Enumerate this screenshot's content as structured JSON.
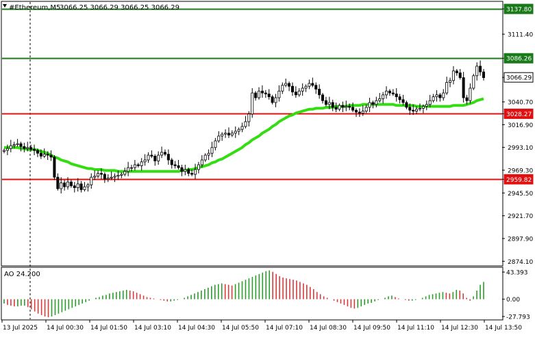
{
  "header": {
    "symbol_label": "#Ethereum,M5",
    "ohlc_label": "3066.25 3066.29 3066.25 3066.29"
  },
  "oscillator": {
    "label": "AO 24.200",
    "axis_labels": [
      "43.393",
      "0.00",
      "-27.793"
    ]
  },
  "colors": {
    "background": "#ffffff",
    "candle": "#000000",
    "ma_line": "#33dd11",
    "resistance_line": "#1a7a1a",
    "support_line": "#e01010",
    "ao_up": "#2a9d2a",
    "ao_down": "#d93a3a",
    "grid_text": "#000000"
  },
  "chart_data": [
    {
      "type": "candlestick",
      "title": "#Ethereum,M5",
      "y_ticks": [
        "3137.80",
        "3111.40",
        "3086.26",
        "3066.29",
        "3040.70",
        "3028.27",
        "3016.90",
        "2993.10",
        "2969.30",
        "2959.82",
        "2945.50",
        "2921.70",
        "2897.90",
        "2874.10"
      ],
      "ylim": [
        2870,
        3145
      ],
      "x_tick_labels": [
        "13 Jul 2025",
        "14 Jul 00:30",
        "14 Jul 01:50",
        "14 Jul 03:10",
        "14 Jul 04:30",
        "14 Jul 05:50",
        "14 Jul 07:10",
        "14 Jul 08:30",
        "14 Jul 09:50",
        "14 Jul 11:10",
        "14 Jul 12:30",
        "14 Jul 13:50"
      ],
      "close": [
        2990,
        2992,
        2995,
        2996,
        2997,
        2994,
        2992,
        2993,
        2991,
        2990,
        2987,
        2984,
        2986,
        2985,
        2983,
        2962,
        2950,
        2956,
        2952,
        2957,
        2953,
        2951,
        2955,
        2949,
        2952,
        2954,
        2962,
        2963,
        2966,
        2965,
        2960,
        2961,
        2962,
        2963,
        2964,
        2965,
        2968,
        2972,
        2972,
        2975,
        2974,
        2978,
        2980,
        2985,
        2984,
        2979,
        2985,
        2988,
        2986,
        2980,
        2975,
        2974,
        2972,
        2968,
        2970,
        2966,
        2965,
        2970,
        2975,
        2980,
        2985,
        2987,
        2993,
        3000,
        3005,
        3007,
        3008,
        3006,
        3008,
        3010,
        3012,
        3015,
        3020,
        3028,
        3050,
        3045,
        3052,
        3050,
        3049,
        3046,
        3040,
        3045,
        3052,
        3058,
        3060,
        3057,
        3051,
        3048,
        3052,
        3055,
        3057,
        3060,
        3058,
        3054,
        3048,
        3042,
        3038,
        3040,
        3035,
        3033,
        3037,
        3035,
        3036,
        3035,
        3032,
        3030,
        3029,
        3031,
        3035,
        3040,
        3038,
        3042,
        3044,
        3048,
        3052,
        3050,
        3049,
        3046,
        3043,
        3040,
        3035,
        3032,
        3031,
        3033,
        3034,
        3036,
        3038,
        3042,
        3046,
        3048,
        3045,
        3050,
        3061,
        3063,
        3073,
        3071,
        3066,
        3045,
        3042,
        3055,
        3068,
        3078,
        3072,
        3066
      ],
      "series": [
        {
          "name": "",
          "kind": "moving-average",
          "values": [
            2993,
            2993,
            2993,
            2993,
            2993,
            2992,
            2992,
            2991,
            2991,
            2991,
            2990,
            2989,
            2988,
            2987,
            2985,
            2983,
            2982,
            2980,
            2979,
            2978,
            2976,
            2975,
            2974,
            2973,
            2972,
            2971,
            2971,
            2970,
            2970,
            2970,
            2969,
            2969,
            2969,
            2969,
            2968,
            2968,
            2968,
            2968,
            2968,
            2968,
            2968,
            2968,
            2968,
            2968,
            2968,
            2968,
            2968,
            2968,
            2968,
            2968,
            2968,
            2968,
            2968,
            2969,
            2969,
            2970,
            2970,
            2971,
            2972,
            2973,
            2974,
            2975,
            2977,
            2978,
            2980,
            2981,
            2983,
            2985,
            2987,
            2989,
            2991,
            2993,
            2996,
            2998,
            3001,
            3003,
            3005,
            3008,
            3010,
            3012,
            3015,
            3017,
            3020,
            3022,
            3024,
            3026,
            3027,
            3029,
            3030,
            3031,
            3032,
            3033,
            3033,
            3034,
            3034,
            3034,
            3035,
            3035,
            3035,
            3036,
            3036,
            3036,
            3036,
            3037,
            3037,
            3037,
            3037,
            3038,
            3038,
            3038,
            3038,
            3038,
            3038,
            3038,
            3038,
            3038,
            3038,
            3037,
            3037,
            3037,
            3037,
            3037,
            3037,
            3036,
            3036,
            3036,
            3036,
            3036,
            3036,
            3036,
            3036,
            3036,
            3036,
            3036,
            3037,
            3037,
            3037,
            3037,
            3038,
            3039,
            3040,
            3042,
            3043,
            3044
          ]
        }
      ],
      "annotations": [
        {
          "text": "3137.80",
          "kind": "horizontal-level",
          "value": 3137.8,
          "color": "#1a7a1a"
        },
        {
          "text": "3086.26",
          "kind": "horizontal-level",
          "value": 3086.26,
          "color": "#1a7a1a"
        },
        {
          "text": "3066.29",
          "kind": "current-price",
          "value": 3066.29,
          "color": "#000000"
        },
        {
          "text": "3028.27",
          "kind": "horizontal-level",
          "value": 3028.27,
          "color": "#e01010"
        },
        {
          "text": "2959.82",
          "kind": "horizontal-level",
          "value": 2959.82,
          "color": "#e01010"
        }
      ],
      "grid": false
    },
    {
      "type": "bar",
      "title": "AO 24.200",
      "ylim": [
        -27.793,
        43.393
      ],
      "y_ticks": [
        "43.393",
        "0.00",
        "-27.793"
      ],
      "values": [
        -6,
        -8,
        -9,
        -10,
        -10,
        -9,
        -9,
        -11,
        -14,
        -17,
        -20,
        -22,
        -24,
        -25,
        -24,
        -22,
        -20,
        -18,
        -16,
        -14,
        -12,
        -10,
        -8,
        -6,
        -4,
        -2,
        0,
        2,
        3,
        5,
        6,
        8,
        9,
        10,
        11,
        12,
        13,
        12,
        11,
        9,
        7,
        5,
        3,
        2,
        1,
        0,
        -1,
        -2,
        -3,
        -3,
        -2,
        -1,
        0,
        2,
        4,
        6,
        8,
        10,
        12,
        14,
        16,
        18,
        20,
        21,
        22,
        21,
        20,
        19,
        21,
        23,
        25,
        27,
        29,
        31,
        33,
        35,
        37,
        39,
        40,
        38,
        35,
        32,
        30,
        29,
        28,
        27,
        26,
        24,
        22,
        20,
        17,
        14,
        10,
        7,
        4,
        2,
        0,
        -2,
        -4,
        -6,
        -8,
        -10,
        -12,
        -13,
        -12,
        -10,
        -8,
        -6,
        -5,
        -3,
        -1,
        0,
        2,
        4,
        5,
        3,
        1,
        0,
        -1,
        -2,
        -2,
        -1,
        0,
        2,
        4,
        6,
        7,
        8,
        9,
        10,
        9,
        8,
        10,
        13,
        12,
        8,
        2,
        -2,
        4,
        12,
        20,
        24
      ],
      "ao_up_color": "#2a9d2a",
      "ao_down_color": "#d93a3a"
    }
  ]
}
